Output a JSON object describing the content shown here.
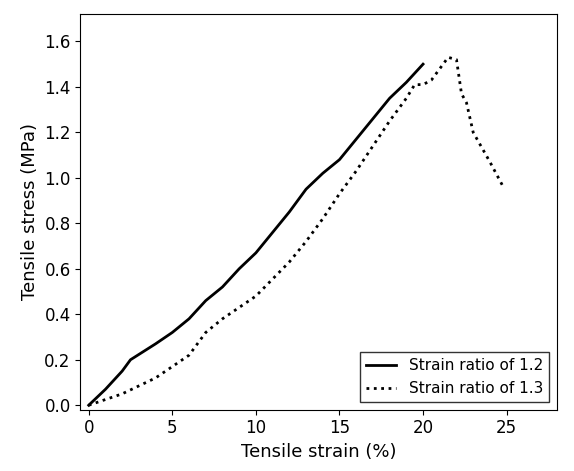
{
  "chart_data": {
    "type": "line",
    "x_label": "Tensile strain (%)",
    "y_label": "Tensile stress (MPa)",
    "xlim": [
      -0.5,
      28
    ],
    "xticks": [
      0,
      5,
      10,
      15,
      20,
      25
    ],
    "ylim": [
      -0.02,
      1.72
    ],
    "yticks": [
      0.0,
      0.2,
      0.4,
      0.6,
      0.8,
      1.0,
      1.2,
      1.4,
      1.6
    ],
    "legend": "lower right",
    "series": [
      {
        "name": "Strain ratio of 1.2",
        "color": "#000000",
        "line_style": "solid",
        "x": [
          0,
          1,
          2,
          2.5,
          4,
          5,
          6,
          7,
          8,
          9,
          10,
          11,
          12,
          13,
          14,
          15,
          16,
          17,
          18,
          19,
          20
        ],
        "values": [
          0,
          0.07,
          0.15,
          0.2,
          0.27,
          0.32,
          0.38,
          0.46,
          0.52,
          0.6,
          0.67,
          0.76,
          0.85,
          0.95,
          1.02,
          1.08,
          1.17,
          1.26,
          1.35,
          1.42,
          1.5
        ]
      },
      {
        "name": "Strain ratio of 1.3",
        "color": "#000000",
        "line_style": "dotted",
        "x": [
          0,
          2,
          4,
          6,
          7,
          8,
          10,
          12,
          13,
          14,
          15,
          16,
          17,
          18,
          19,
          19.5,
          20,
          20.5,
          21,
          21.5,
          22,
          22.3,
          22.6,
          23,
          24,
          24.8
        ],
        "values": [
          0,
          0.05,
          0.12,
          0.22,
          0.32,
          0.38,
          0.48,
          0.63,
          0.72,
          0.82,
          0.93,
          1.03,
          1.14,
          1.25,
          1.35,
          1.41,
          1.41,
          1.43,
          1.48,
          1.53,
          1.52,
          1.37,
          1.33,
          1.2,
          1.07,
          0.96
        ]
      }
    ]
  }
}
